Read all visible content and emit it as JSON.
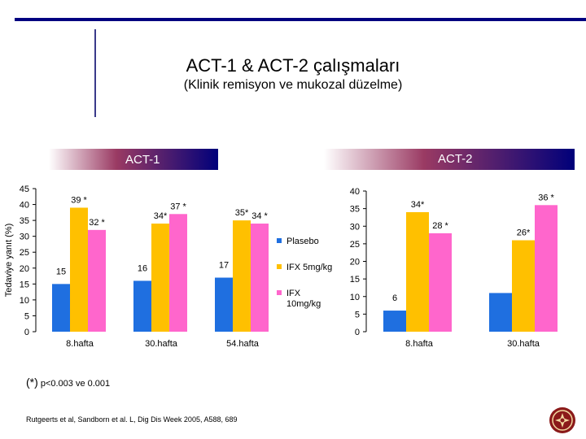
{
  "slide": {
    "title": "ACT-1  &  ACT-2  çalışmaları",
    "subtitle": "(Klinik remisyon ve mukozal düzelme)",
    "footnote_star": "(*)",
    "footnote_text": " p<0.003  ve 0.001",
    "reference": "Rutgeerts  et al,  Sandborn et al. L, Dig Dis Week 2005, A588, 689",
    "logo_icon": "university-seal-icon"
  },
  "chart_data": [
    {
      "type": "bar",
      "title": "ACT-1",
      "ylabel": "Tedaviye yanıt (%)",
      "ylim": [
        0,
        45
      ],
      "yticks": [
        "0",
        "5",
        "10",
        "15",
        "20",
        "25",
        "30",
        "35",
        "40",
        "45"
      ],
      "categories": [
        "8.hafta",
        "30.hafta",
        "54.hafta"
      ],
      "series": [
        {
          "name": "Plasebo",
          "color": "#1f6fe0",
          "values": [
            15,
            16,
            17
          ]
        },
        {
          "name": "IFX 5mg/kg",
          "color": "#ffc000",
          "values": [
            39,
            34,
            35
          ]
        },
        {
          "name": "IFX 10mg/kg",
          "color": "#ff66cc",
          "values": [
            32,
            37,
            34
          ]
        }
      ],
      "data_labels": [
        [
          "15",
          "39 *",
          "32  *"
        ],
        [
          "16",
          "34*",
          "37  *"
        ],
        [
          "17",
          "35*",
          "34  *"
        ]
      ],
      "legend": "right"
    },
    {
      "type": "bar",
      "title": "ACT-2",
      "ylim": [
        0,
        40
      ],
      "yticks": [
        "0",
        "5",
        "10",
        "15",
        "20",
        "25",
        "30",
        "35",
        "40"
      ],
      "categories": [
        "8.hafta",
        "30.hafta"
      ],
      "series": [
        {
          "name": "Plasebo",
          "color": "#1f6fe0",
          "values": [
            6,
            11
          ]
        },
        {
          "name": "IFX 5mg/kg",
          "color": "#ffc000",
          "values": [
            34,
            26
          ]
        },
        {
          "name": "IFX 10mg/kg",
          "color": "#ff66cc",
          "values": [
            28,
            36
          ]
        }
      ],
      "data_labels": [
        [
          "6",
          "34*",
          "28  *"
        ],
        [
          "",
          "26*",
          "36  *"
        ]
      ]
    }
  ]
}
